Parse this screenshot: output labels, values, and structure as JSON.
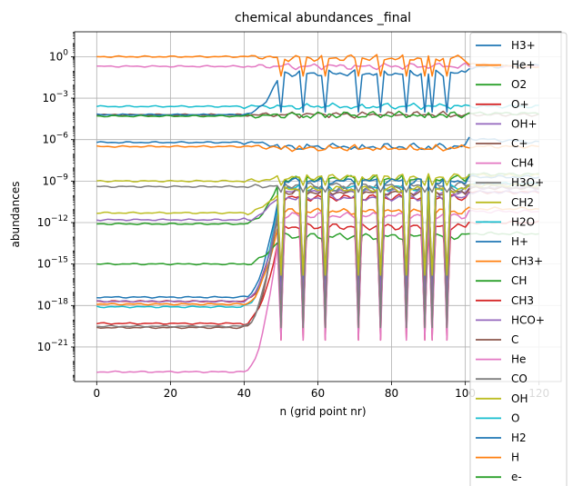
{
  "chart_data": {
    "type": "line",
    "title": "chemical abundances _final",
    "xlabel": "n (grid point nr)",
    "ylabel": "abundances",
    "xlim": [
      -6,
      126
    ],
    "ylim_log10": [
      -23.5,
      1.8
    ],
    "yscale": "log",
    "grid": true,
    "legend_location": "right, overlapping plot",
    "x_ticks": [
      0,
      20,
      40,
      60,
      80,
      100,
      120
    ],
    "y_ticks": [
      {
        "exp": 0,
        "label": "10",
        "sup": "0"
      },
      {
        "exp": -3,
        "label": "10",
        "sup": "−3"
      },
      {
        "exp": -6,
        "label": "10",
        "sup": "−6"
      },
      {
        "exp": -9,
        "label": "10",
        "sup": "−9"
      },
      {
        "exp": -12,
        "label": "10",
        "sup": "−12"
      },
      {
        "exp": -15,
        "label": "10",
        "sup": "−15"
      },
      {
        "exp": -18,
        "label": "10",
        "sup": "−18"
      },
      {
        "exp": -21,
        "label": "10",
        "sup": "−21"
      }
    ],
    "n_points": 121,
    "dip_indices": [
      50,
      56,
      62,
      71,
      77,
      84,
      89,
      91,
      95
    ],
    "series": [
      {
        "name": "H3+",
        "color": "#1f77b4",
        "base": -6.2,
        "high": -6.5,
        "tail": -5.9,
        "dip": -6.7,
        "tail_style": "down"
      },
      {
        "name": "He+",
        "color": "#ff7f0e",
        "base": -6.5,
        "high": -6.6,
        "tail": -6.5,
        "dip": -6.7,
        "tail_style": "flat"
      },
      {
        "name": "O2",
        "color": "#2ca02c",
        "base": -12.1,
        "high": -8.8,
        "tail": -8.5,
        "dip": -17.5,
        "tail_style": "flat"
      },
      {
        "name": "O+",
        "color": "#d62728",
        "base": -17.7,
        "high": -10.2,
        "tail": -9.8,
        "dip": -20.5,
        "tail_style": "flat"
      },
      {
        "name": "OH+",
        "color": "#9467bd",
        "base": -11.8,
        "high": -9.8,
        "tail": -9.5,
        "dip": -15.5,
        "tail_style": "flat"
      },
      {
        "name": "C+",
        "color": "#8c564b",
        "base": -4.2,
        "high": -4.2,
        "tail": -4.2,
        "dip": -4.2,
        "tail_style": "flat"
      },
      {
        "name": "CH4",
        "color": "#e377c2",
        "base": -0.7,
        "high": -0.7,
        "tail": -0.7,
        "dip": -0.7,
        "tail_style": "flat"
      },
      {
        "name": "H3O+",
        "color": "#7f7f7f",
        "base": -9.4,
        "high": -9.3,
        "tail": -9.2,
        "dip": -9.8,
        "tail_style": "flat"
      },
      {
        "name": "CH2",
        "color": "#bcbd22",
        "base": -9.0,
        "high": -8.7,
        "tail": -8.6,
        "dip": -9.3,
        "tail_style": "flat"
      },
      {
        "name": "H2O",
        "color": "#17becf",
        "base": -18.1,
        "high": -9.5,
        "tail": -9.2,
        "dip": -17.8,
        "tail_style": "flat"
      },
      {
        "name": "H+",
        "color": "#1f77b4",
        "base": -17.4,
        "high": -9.0,
        "tail": -8.7,
        "dip": -17.0,
        "tail_style": "flat"
      },
      {
        "name": "CH3+",
        "color": "#ff7f0e",
        "base": -17.9,
        "high": -11.2,
        "tail": -11.0,
        "dip": -18.0,
        "tail_style": "flat"
      },
      {
        "name": "CH",
        "color": "#2ca02c",
        "base": -15.0,
        "high": -13.0,
        "tail": -12.8,
        "dip": -15.0,
        "tail_style": "flat"
      },
      {
        "name": "CH3",
        "color": "#d62728",
        "base": -19.3,
        "high": -12.3,
        "tail": -12.0,
        "dip": -19.5,
        "tail_style": "flat"
      },
      {
        "name": "HCO+",
        "color": "#9467bd",
        "base": -17.7,
        "high": -10.2,
        "tail": -9.8,
        "dip": -17.6,
        "tail_style": "flat"
      },
      {
        "name": "C",
        "color": "#8c564b",
        "base": -19.6,
        "high": -9.8,
        "tail": -9.5,
        "dip": -19.7,
        "tail_style": "flat"
      },
      {
        "name": "He",
        "color": "#e377c2",
        "base": -22.8,
        "high": -11.5,
        "tail": -11.2,
        "dip": -20.5,
        "tail_style": "flat"
      },
      {
        "name": "CO",
        "color": "#7f7f7f",
        "base": -19.5,
        "high": -9.6,
        "tail": -9.4,
        "dip": -19.6,
        "tail_style": "flat"
      },
      {
        "name": "OH",
        "color": "#bcbd22",
        "base": -11.3,
        "high": -9.6,
        "tail": -9.3,
        "dip": -15.8,
        "tail_style": "flat"
      },
      {
        "name": "O",
        "color": "#17becf",
        "base": -3.6,
        "high": -3.6,
        "tail": -3.6,
        "dip": -3.6,
        "tail_style": "flat"
      },
      {
        "name": "H2",
        "color": "#1f77b4",
        "base": -4.2,
        "high": -1.2,
        "tail": -0.8,
        "dip": -4.0,
        "tail_style": "up"
      },
      {
        "name": "H",
        "color": "#ff7f0e",
        "base": 0.0,
        "high": -0.1,
        "tail": -0.5,
        "dip": -1.4,
        "tail_style": "down"
      },
      {
        "name": "e-",
        "color": "#2ca02c",
        "base": -4.3,
        "high": -4.2,
        "tail": -4.1,
        "dip": -4.4,
        "tail_style": "flat"
      }
    ]
  }
}
